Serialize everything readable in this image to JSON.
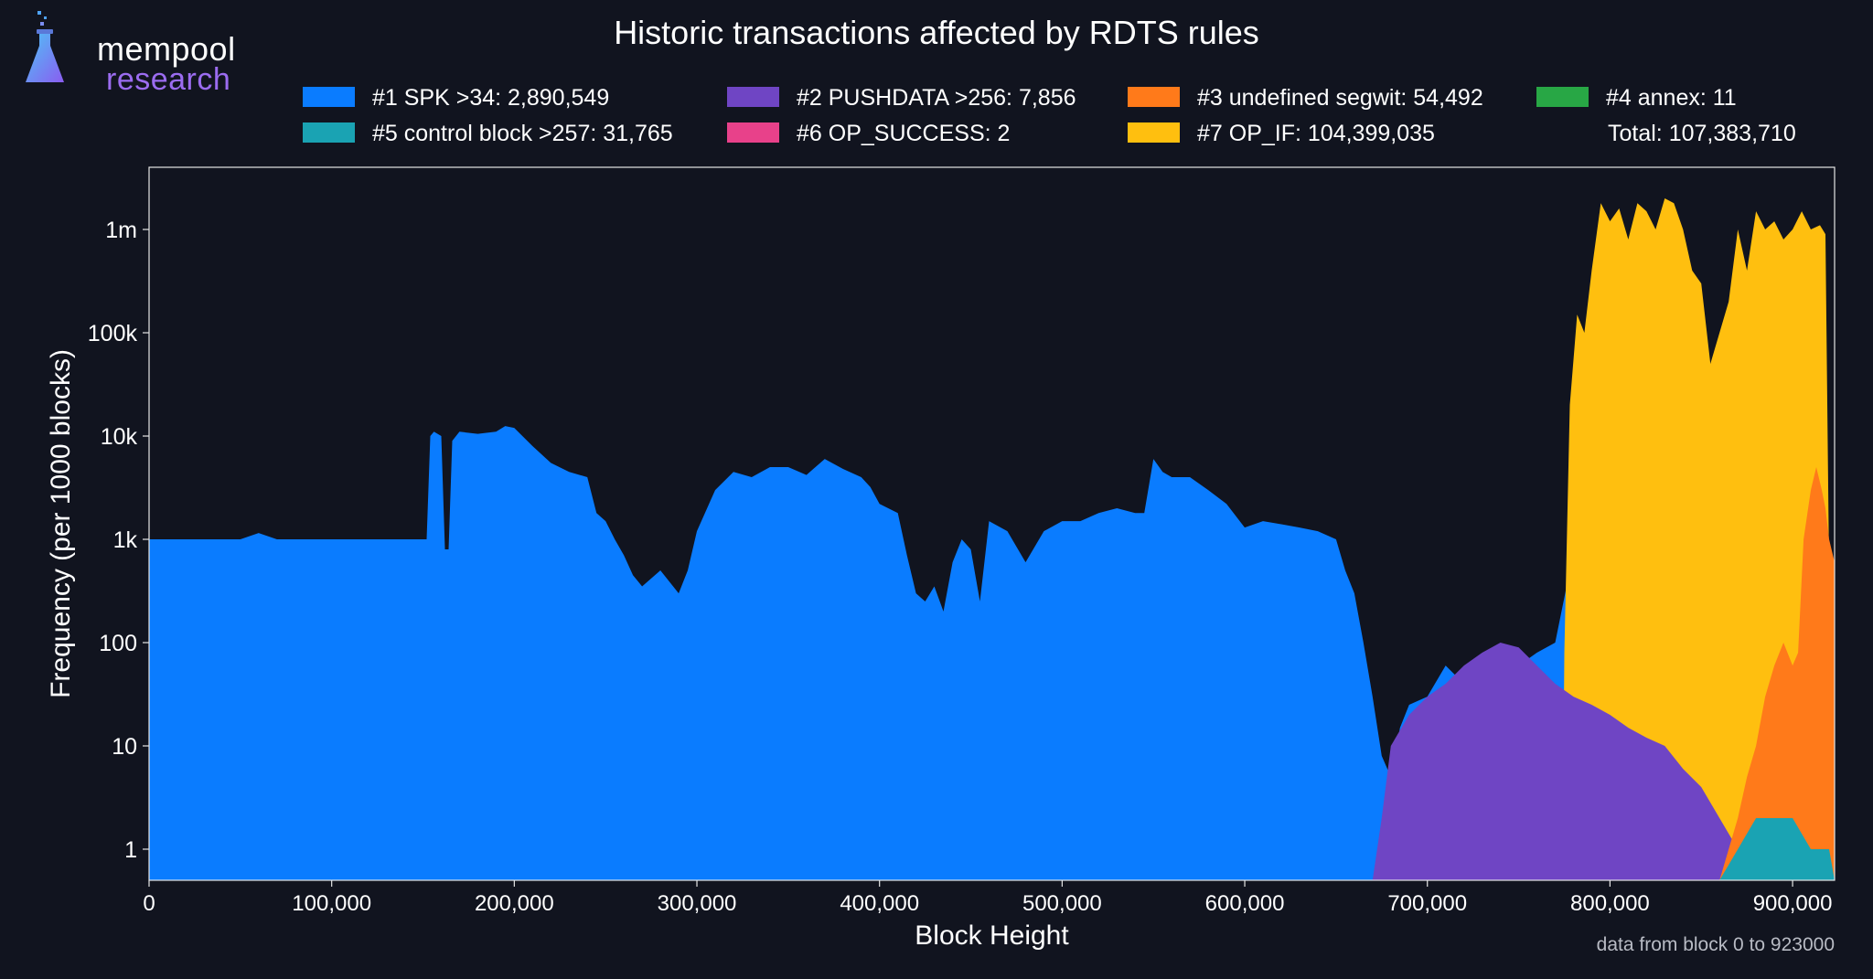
{
  "logo": {
    "line1": "mempool",
    "line2": "research"
  },
  "footnote": "data from block 0 to 923000",
  "chart_data": {
    "type": "bar",
    "title": "Historic transactions affected by RDTS rules",
    "xlabel": "Block Height",
    "ylabel": "Frequency (per 1000 blocks)",
    "y_scale": "log",
    "xlim": [
      0,
      923000
    ],
    "ylim": [
      0.5,
      4000000
    ],
    "x_ticks": [
      0,
      100000,
      200000,
      300000,
      400000,
      500000,
      600000,
      700000,
      800000,
      900000
    ],
    "x_tick_labels": [
      "0",
      "100,000",
      "200,000",
      "300,000",
      "400,000",
      "500,000",
      "600,000",
      "700,000",
      "800,000",
      "900,000"
    ],
    "y_ticks": [
      1,
      10,
      100,
      1000,
      10000,
      100000,
      1000000
    ],
    "y_tick_labels": [
      "1",
      "10",
      "100",
      "1k",
      "10k",
      "100k",
      "1m"
    ],
    "legend_position": "top",
    "total_label": "Total: 107,383,710",
    "series": [
      {
        "name": "#1 SPK >34: 2,890,549",
        "color": "#0a7cff",
        "points": [
          [
            0,
            1000
          ],
          [
            50000,
            1000
          ],
          [
            60000,
            1150
          ],
          [
            70000,
            1000
          ],
          [
            150000,
            1000
          ],
          [
            152000,
            1000
          ],
          [
            154000,
            10000
          ],
          [
            156000,
            11000
          ],
          [
            160000,
            10000
          ],
          [
            162000,
            800
          ],
          [
            164000,
            800
          ],
          [
            166000,
            9000
          ],
          [
            170000,
            11000
          ],
          [
            180000,
            10500
          ],
          [
            190000,
            11000
          ],
          [
            195000,
            12500
          ],
          [
            200000,
            12000
          ],
          [
            210000,
            8000
          ],
          [
            220000,
            5500
          ],
          [
            230000,
            4500
          ],
          [
            240000,
            4000
          ],
          [
            245000,
            1800
          ],
          [
            250000,
            1500
          ],
          [
            255000,
            1000
          ],
          [
            260000,
            700
          ],
          [
            265000,
            450
          ],
          [
            270000,
            350
          ],
          [
            280000,
            500
          ],
          [
            290000,
            300
          ],
          [
            295000,
            500
          ],
          [
            300000,
            1200
          ],
          [
            310000,
            3000
          ],
          [
            320000,
            4500
          ],
          [
            330000,
            4000
          ],
          [
            340000,
            5000
          ],
          [
            350000,
            5000
          ],
          [
            360000,
            4200
          ],
          [
            370000,
            6000
          ],
          [
            380000,
            4800
          ],
          [
            390000,
            4000
          ],
          [
            395000,
            3200
          ],
          [
            400000,
            2200
          ],
          [
            410000,
            1800
          ],
          [
            415000,
            700
          ],
          [
            420000,
            300
          ],
          [
            425000,
            250
          ],
          [
            430000,
            350
          ],
          [
            435000,
            200
          ],
          [
            440000,
            600
          ],
          [
            445000,
            1000
          ],
          [
            450000,
            800
          ],
          [
            455000,
            250
          ],
          [
            460000,
            1500
          ],
          [
            470000,
            1200
          ],
          [
            480000,
            600
          ],
          [
            490000,
            1200
          ],
          [
            500000,
            1500
          ],
          [
            510000,
            1500
          ],
          [
            520000,
            1800
          ],
          [
            530000,
            2000
          ],
          [
            540000,
            1800
          ],
          [
            545000,
            1800
          ],
          [
            550000,
            6000
          ],
          [
            555000,
            4500
          ],
          [
            560000,
            4000
          ],
          [
            570000,
            4000
          ],
          [
            580000,
            3000
          ],
          [
            590000,
            2200
          ],
          [
            600000,
            1300
          ],
          [
            610000,
            1500
          ],
          [
            620000,
            1400
          ],
          [
            630000,
            1300
          ],
          [
            640000,
            1200
          ],
          [
            650000,
            1000
          ],
          [
            655000,
            500
          ],
          [
            660000,
            300
          ],
          [
            665000,
            100
          ],
          [
            670000,
            30
          ],
          [
            675000,
            8
          ],
          [
            680000,
            5
          ],
          [
            685000,
            15
          ],
          [
            690000,
            25
          ],
          [
            700000,
            30
          ],
          [
            710000,
            60
          ],
          [
            720000,
            40
          ],
          [
            730000,
            50
          ],
          [
            740000,
            40
          ],
          [
            750000,
            60
          ],
          [
            760000,
            80
          ],
          [
            770000,
            100
          ],
          [
            778000,
            500
          ],
          [
            782000,
            3000
          ],
          [
            790000,
            4000
          ],
          [
            795000,
            8000
          ],
          [
            800000,
            2000
          ],
          [
            805000,
            5000
          ],
          [
            810000,
            2000
          ],
          [
            815000,
            2000
          ],
          [
            820000,
            4000
          ],
          [
            825000,
            300
          ],
          [
            830000,
            150
          ],
          [
            835000,
            5000
          ],
          [
            840000,
            8000
          ],
          [
            845000,
            6000
          ],
          [
            850000,
            5000
          ],
          [
            855000,
            4000
          ],
          [
            860000,
            3000
          ],
          [
            865000,
            5000
          ],
          [
            870000,
            4000
          ],
          [
            875000,
            5000
          ],
          [
            880000,
            6000
          ],
          [
            885000,
            5000
          ],
          [
            890000,
            4000
          ],
          [
            895000,
            4000
          ],
          [
            900000,
            5000
          ],
          [
            905000,
            3000
          ],
          [
            910000,
            3000
          ],
          [
            915000,
            4000
          ],
          [
            918000,
            1000
          ],
          [
            920000,
            500
          ],
          [
            923000,
            500
          ]
        ]
      },
      {
        "name": "#2 PUSHDATA >256: 7,856",
        "color": "#6f45c4",
        "points": [
          [
            670000,
            0.5
          ],
          [
            675000,
            2
          ],
          [
            680000,
            10
          ],
          [
            690000,
            20
          ],
          [
            700000,
            30
          ],
          [
            710000,
            40
          ],
          [
            720000,
            60
          ],
          [
            730000,
            80
          ],
          [
            740000,
            100
          ],
          [
            750000,
            90
          ],
          [
            760000,
            60
          ],
          [
            770000,
            40
          ],
          [
            780000,
            30
          ],
          [
            790000,
            25
          ],
          [
            800000,
            20
          ],
          [
            810000,
            15
          ],
          [
            820000,
            12
          ],
          [
            830000,
            10
          ],
          [
            840000,
            6
          ],
          [
            850000,
            4
          ],
          [
            860000,
            2
          ],
          [
            870000,
            1
          ],
          [
            880000,
            0.5
          ]
        ]
      },
      {
        "name": "#3 undefined segwit: 54,492",
        "color": "#ff7a1a",
        "points": [
          [
            860000,
            0.5
          ],
          [
            865000,
            1
          ],
          [
            870000,
            2
          ],
          [
            875000,
            5
          ],
          [
            880000,
            10
          ],
          [
            885000,
            30
          ],
          [
            890000,
            60
          ],
          [
            895000,
            100
          ],
          [
            900000,
            60
          ],
          [
            903000,
            80
          ],
          [
            906000,
            1000
          ],
          [
            910000,
            3000
          ],
          [
            913000,
            5000
          ],
          [
            916000,
            3000
          ],
          [
            918000,
            2000
          ],
          [
            920000,
            1000
          ],
          [
            923000,
            600
          ]
        ]
      },
      {
        "name": "#4 annex: 11",
        "color": "#28a745",
        "points": []
      },
      {
        "name": "#5 control block >257: 31,765",
        "color": "#1aa3b3",
        "points": [
          [
            860000,
            0.5
          ],
          [
            870000,
            1
          ],
          [
            880000,
            2
          ],
          [
            890000,
            2
          ],
          [
            900000,
            2
          ],
          [
            910000,
            1
          ],
          [
            920000,
            1
          ],
          [
            923000,
            0.5
          ]
        ]
      },
      {
        "name": "#6 OP_SUCCESS: 2",
        "color": "#e8418a",
        "points": []
      },
      {
        "name": "#7 OP_IF: 104,399,035",
        "color": "#ffbf0f",
        "points": [
          [
            774000,
            0.5
          ],
          [
            775000,
            80
          ],
          [
            778000,
            20000
          ],
          [
            782000,
            150000
          ],
          [
            786000,
            100000
          ],
          [
            790000,
            400000
          ],
          [
            795000,
            1800000
          ],
          [
            800000,
            1200000
          ],
          [
            805000,
            1600000
          ],
          [
            810000,
            800000
          ],
          [
            815000,
            1800000
          ],
          [
            820000,
            1500000
          ],
          [
            825000,
            1000000
          ],
          [
            830000,
            2000000
          ],
          [
            835000,
            1800000
          ],
          [
            840000,
            1000000
          ],
          [
            845000,
            400000
          ],
          [
            850000,
            300000
          ],
          [
            855000,
            50000
          ],
          [
            860000,
            100000
          ],
          [
            865000,
            200000
          ],
          [
            870000,
            1000000
          ],
          [
            875000,
            400000
          ],
          [
            880000,
            1500000
          ],
          [
            885000,
            1000000
          ],
          [
            890000,
            1200000
          ],
          [
            895000,
            800000
          ],
          [
            900000,
            1000000
          ],
          [
            905000,
            1500000
          ],
          [
            910000,
            1000000
          ],
          [
            915000,
            1100000
          ],
          [
            918000,
            900000
          ],
          [
            920000,
            500
          ]
        ]
      }
    ]
  }
}
